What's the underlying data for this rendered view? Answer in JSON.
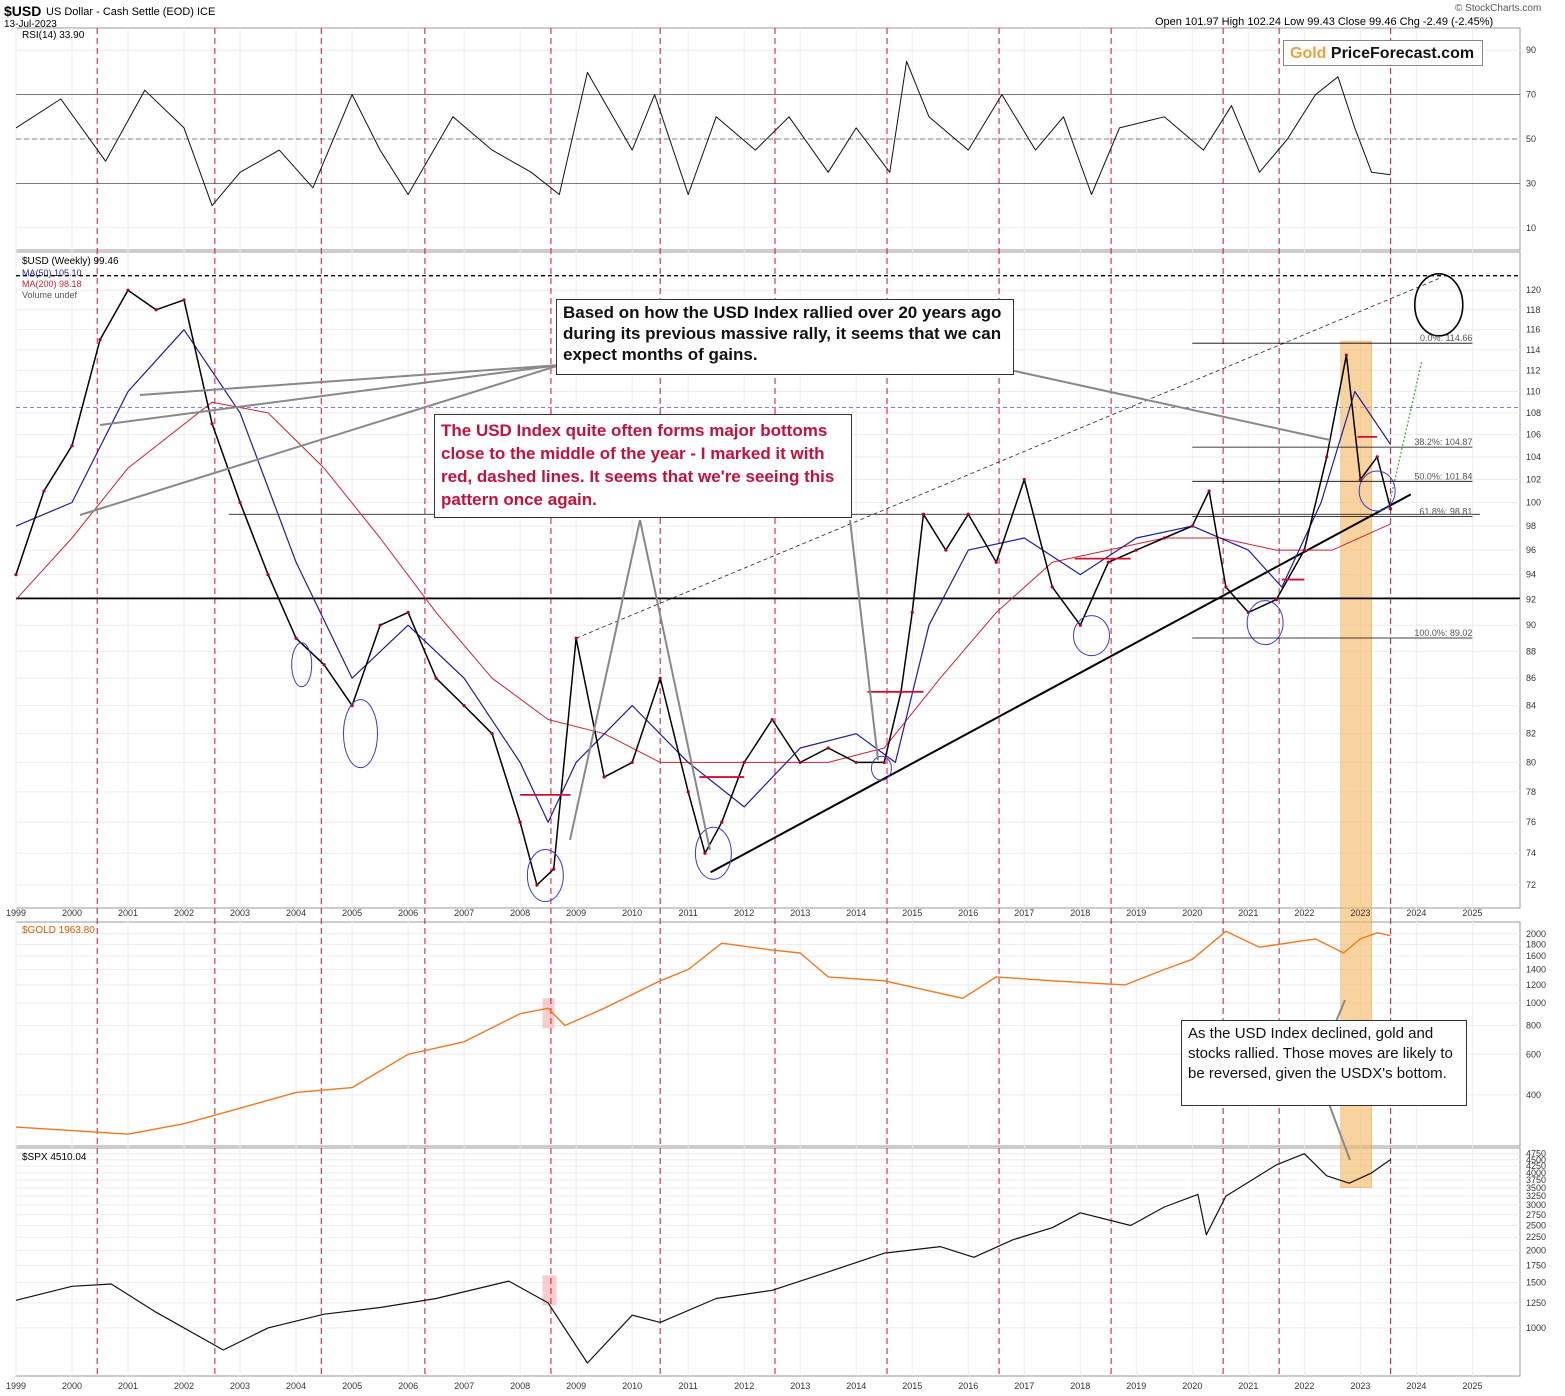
{
  "header": {
    "symbol": "$USD",
    "description": "US Dollar - Cash Settle (EOD) ICE",
    "date": "13-Jul-2023",
    "ohlc": "Open 101.97  High 102.24  Low 99.43  Close 99.46  Chg -2.49 (-2.45%)",
    "source": "© StockCharts.com"
  },
  "logo": {
    "part1": "Gold",
    "part2": "PriceForecast.com"
  },
  "panels": {
    "rsi": {
      "label": "RSI(14) 33.90",
      "ticks": [
        10,
        30,
        50,
        70,
        90
      ]
    },
    "usd": {
      "label": "$USD (Weekly) 99.46",
      "legend": [
        "MA(50) 105.10",
        "MA(200) 98.18",
        "Volume undef"
      ],
      "ticks": [
        72,
        74,
        76,
        78,
        80,
        82,
        84,
        86,
        88,
        90,
        92,
        94,
        96,
        98,
        100,
        102,
        104,
        106,
        108,
        110,
        112,
        114,
        116,
        118,
        120
      ]
    },
    "gold": {
      "label": "$GOLD 1963.80",
      "ticks": [
        400,
        600,
        800,
        1000,
        1200,
        1400,
        1600,
        1800,
        2000
      ]
    },
    "spx": {
      "label": "$SPX 4510.04",
      "ticks": [
        1000,
        1250,
        1500,
        1750,
        2000,
        2250,
        2500,
        2750,
        3000,
        3250,
        3500,
        3750,
        4000,
        4250,
        4500,
        4750
      ]
    }
  },
  "x_years": [
    "1999",
    "2000",
    "2001",
    "2002",
    "2003",
    "2004",
    "2005",
    "2006",
    "2007",
    "2008",
    "2009",
    "2010",
    "2011",
    "2012",
    "2013",
    "2014",
    "2015",
    "2016",
    "2017",
    "2018",
    "2019",
    "2020",
    "2021",
    "2022",
    "2023",
    "2024",
    "2025"
  ],
  "fib_labels": [
    "0.0%: 114.66",
    "38.2%: 104.87",
    "50.0%: 101.84",
    "61.8%: 98.81",
    "100.0%: 89.02"
  ],
  "annotations": {
    "blue_box": "Based on how the USD Index rallied over 20 years ago during its previous massive rally, it seems that we can expect months of gains.",
    "red_box": "The USD Index quite often forms major bottoms close to the middle of the year - I marked it with red, dashed lines. It seems that we're seeing this pattern once again.",
    "gold_box": "As the USD Index declined, gold and stocks rallied. Those moves are likely to be reversed, given the USDX's bottom."
  },
  "colors": {
    "price": "#000000",
    "down": "#b0002a",
    "ma50": "#1c1c9c",
    "ma200": "#cc2233",
    "gold": "#f07820",
    "highlight": "#f6b660",
    "redline": "#cc1133",
    "circle": "#3a3acc"
  },
  "chart_data": {
    "type": "line",
    "x_axis": "year",
    "usd_weekly": {
      "x": [
        1999.0,
        1999.5,
        2000.0,
        2000.5,
        2001.0,
        2001.5,
        2002.0,
        2002.5,
        2003.0,
        2003.5,
        2004.0,
        2004.5,
        2005.0,
        2005.5,
        2006.0,
        2006.5,
        2007.0,
        2007.5,
        2008.0,
        2008.3,
        2008.6,
        2009.0,
        2009.5,
        2010.0,
        2010.5,
        2011.0,
        2011.3,
        2011.6,
        2012.0,
        2012.5,
        2013.0,
        2013.5,
        2014.0,
        2014.5,
        2014.8,
        2015.0,
        2015.2,
        2015.6,
        2016.0,
        2016.5,
        2017.0,
        2017.5,
        2018.0,
        2018.5,
        2019.0,
        2019.5,
        2020.0,
        2020.3,
        2020.6,
        2021.0,
        2021.5,
        2022.0,
        2022.4,
        2022.75,
        2023.0,
        2023.3,
        2023.54
      ],
      "y": [
        94,
        101,
        105,
        115,
        120,
        118,
        119,
        107,
        100,
        94,
        89,
        87,
        84,
        90,
        91,
        86,
        84,
        82,
        76,
        72,
        73,
        89,
        79,
        80,
        86,
        78,
        74,
        76,
        80,
        83,
        80,
        81,
        80,
        80,
        85,
        91,
        99,
        96,
        99,
        95,
        102,
        93,
        90,
        95,
        96,
        97,
        98,
        101,
        93,
        91,
        92,
        96,
        104,
        113.5,
        102,
        104,
        99.46
      ]
    },
    "ma50": {
      "x": [
        1999,
        2000,
        2001,
        2002,
        2003,
        2004,
        2005,
        2006,
        2007,
        2008,
        2008.5,
        2009,
        2010,
        2011,
        2012,
        2013,
        2014,
        2014.7,
        2015.3,
        2016,
        2017,
        2018,
        2019,
        2020,
        2021,
        2021.6,
        2022.3,
        2022.9,
        2023.54
      ],
      "y": [
        98,
        100,
        110,
        116,
        108,
        95,
        86,
        90,
        86,
        80,
        76,
        80,
        84,
        80,
        77,
        81,
        82,
        80,
        90,
        96,
        97,
        94,
        97,
        98,
        96,
        93,
        100,
        110,
        105.1
      ]
    },
    "ma200": {
      "x": [
        1999,
        2000,
        2001,
        2002.5,
        2003.5,
        2004.5,
        2005.5,
        2006.5,
        2007.5,
        2008.5,
        2009.5,
        2010.5,
        2011.5,
        2012.5,
        2013.5,
        2014.5,
        2015.5,
        2016.5,
        2017.5,
        2018.5,
        2019.5,
        2020.5,
        2021.5,
        2022.5,
        2023.54
      ],
      "y": [
        92,
        97,
        103,
        109,
        108,
        103,
        97,
        91,
        86,
        83,
        82,
        80,
        80,
        80,
        80,
        81,
        86,
        91,
        95,
        96,
        97,
        97,
        96,
        96,
        98.18
      ]
    },
    "rsi14": {
      "x": [
        1999,
        1999.8,
        2000.6,
        2001.3,
        2002.0,
        2002.5,
        2003.0,
        2003.7,
        2004.3,
        2005.0,
        2005.5,
        2006.0,
        2006.8,
        2007.5,
        2008.2,
        2008.7,
        2009.2,
        2010.0,
        2010.4,
        2011.0,
        2011.5,
        2012.2,
        2012.8,
        2013.5,
        2014.0,
        2014.6,
        2014.9,
        2015.3,
        2016.0,
        2016.6,
        2017.2,
        2017.7,
        2018.2,
        2018.7,
        2019.5,
        2020.2,
        2020.7,
        2021.2,
        2021.7,
        2022.2,
        2022.6,
        2022.9,
        2023.2,
        2023.54
      ],
      "y": [
        55,
        68,
        40,
        72,
        55,
        20,
        35,
        45,
        28,
        70,
        45,
        25,
        60,
        45,
        35,
        25,
        80,
        45,
        70,
        25,
        60,
        45,
        60,
        35,
        55,
        35,
        85,
        60,
        45,
        70,
        45,
        60,
        25,
        55,
        60,
        45,
        65,
        35,
        50,
        70,
        78,
        55,
        35,
        33.9
      ]
    },
    "gold": {
      "x": [
        1999,
        2000,
        2001,
        2002,
        2003,
        2004,
        2005,
        2006,
        2007,
        2008,
        2008.5,
        2008.8,
        2009.5,
        2010.5,
        2011.0,
        2011.6,
        2012.5,
        2013.0,
        2013.5,
        2014.5,
        2015.9,
        2016.5,
        2017.5,
        2018.8,
        2019.5,
        2020.0,
        2020.6,
        2021.2,
        2022.2,
        2022.7,
        2023.0,
        2023.3,
        2023.54
      ],
      "y": [
        290,
        280,
        270,
        300,
        350,
        410,
        430,
        600,
        680,
        900,
        950,
        800,
        950,
        1250,
        1400,
        1820,
        1700,
        1650,
        1300,
        1250,
        1050,
        1300,
        1250,
        1200,
        1400,
        1550,
        2050,
        1750,
        1900,
        1650,
        1900,
        2020,
        1963.8
      ]
    },
    "spx": {
      "x": [
        1999,
        2000,
        2000.7,
        2001.5,
        2002.7,
        2003.5,
        2004.5,
        2005.5,
        2006.5,
        2007.8,
        2008.5,
        2009.2,
        2010.0,
        2010.5,
        2011.5,
        2012.5,
        2013.5,
        2014.5,
        2015.5,
        2016.1,
        2016.8,
        2017.5,
        2018.0,
        2018.9,
        2019.5,
        2020.1,
        2020.25,
        2020.6,
        2021.5,
        2022.0,
        2022.4,
        2022.8,
        2023.2,
        2023.54
      ],
      "y": [
        1280,
        1450,
        1480,
        1150,
        820,
        1000,
        1130,
        1200,
        1300,
        1520,
        1250,
        730,
        1120,
        1050,
        1300,
        1400,
        1650,
        1950,
        2070,
        1880,
        2200,
        2450,
        2800,
        2500,
        2950,
        3300,
        2300,
        3250,
        4300,
        4750,
        3900,
        3650,
        4000,
        4510.04
      ]
    }
  }
}
